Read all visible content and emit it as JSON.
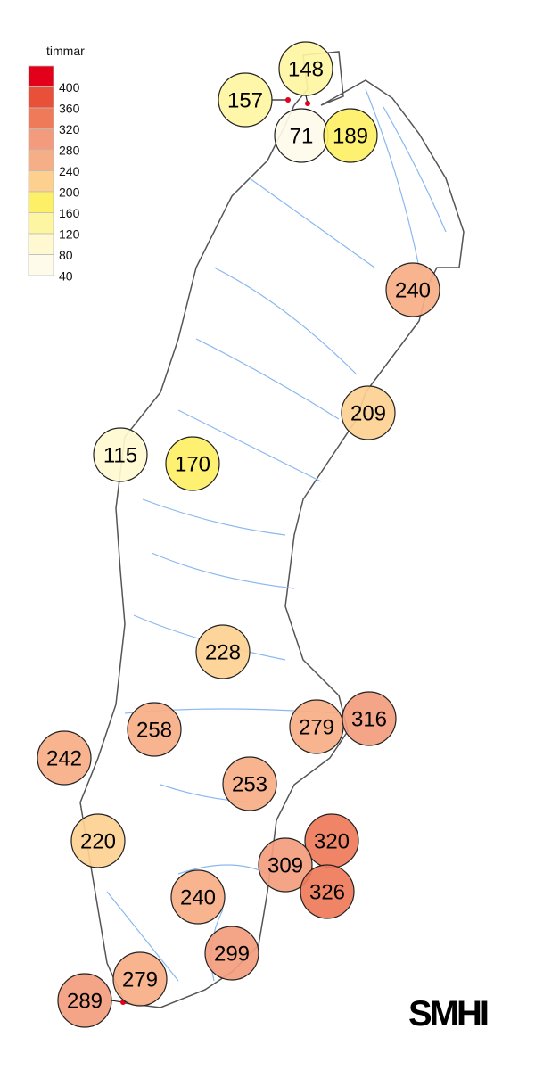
{
  "legend": {
    "title": "timmar",
    "ticks": [
      "400",
      "360",
      "320",
      "280",
      "240",
      "200",
      "160",
      "120",
      "80",
      "40"
    ],
    "colors": [
      "#e3001b",
      "#e8503a",
      "#ef7a5a",
      "#f39c7d",
      "#f6ae86",
      "#fdd090",
      "#fef066",
      "#fef5a2",
      "#fff8d0",
      "#fffbea"
    ]
  },
  "colors": {
    "outline": "#555555",
    "river": "#8ab8f0",
    "stroke": "#222222",
    "marker": "#e3001b"
  },
  "stations": [
    {
      "value": "148",
      "n": 148
    },
    {
      "value": "157",
      "n": 157
    },
    {
      "value": "71",
      "n": 71
    },
    {
      "value": "189",
      "n": 189
    },
    {
      "value": "240",
      "n": 240
    },
    {
      "value": "209",
      "n": 209
    },
    {
      "value": "115",
      "n": 115
    },
    {
      "value": "170",
      "n": 170
    },
    {
      "value": "228",
      "n": 228
    },
    {
      "value": "279",
      "n": 279
    },
    {
      "value": "316",
      "n": 316
    },
    {
      "value": "258",
      "n": 258
    },
    {
      "value": "242",
      "n": 242
    },
    {
      "value": "253",
      "n": 253
    },
    {
      "value": "220",
      "n": 220
    },
    {
      "value": "320",
      "n": 320
    },
    {
      "value": "309",
      "n": 309
    },
    {
      "value": "326",
      "n": 326
    },
    {
      "value": "240",
      "n": 240
    },
    {
      "value": "299",
      "n": 299
    },
    {
      "value": "279",
      "n": 279
    },
    {
      "value": "289",
      "n": 289
    }
  ],
  "logo": "SMHI"
}
